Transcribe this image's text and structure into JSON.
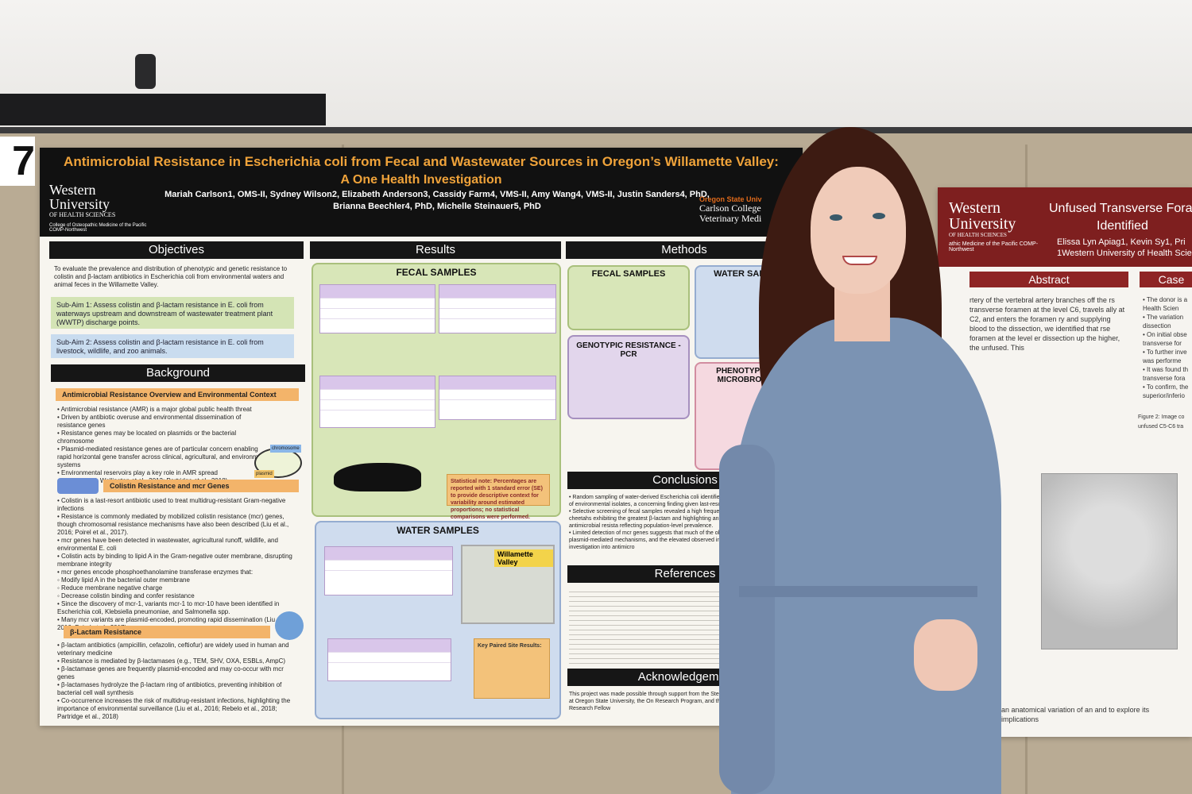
{
  "booth": {
    "number": "7"
  },
  "main_poster": {
    "title": "Antimicrobial Resistance in Escherichia coli from Fecal and Wastewater Sources in Oregon’s Willamette Valley:",
    "subtitle": "A One Health Investigation",
    "authors_line1": "Mariah Carlson1, OMS-II, Sydney Wilson2, Elizabeth Anderson3, Cassidy Farm4, VMS-II, Amy Wang4, VMS-II, Justin Sanders4, PhD,",
    "authors_line2": "Brianna Beechler4, PhD, Michelle Steinauer5, PhD",
    "logo_left_name": "Western",
    "logo_left_name2": "University",
    "logo_left_sub": "OF HEALTH SCIENCES",
    "logo_left_college": "College of Osteopathic Medicine of the Pacific COMP-Northwest",
    "logo_right_osu": "Oregon State Univ",
    "logo_right_college": "Carlson College",
    "logo_right_college2": "Veterinary Medi",
    "sections": {
      "objectives": "Objectives",
      "background": "Background",
      "results": "Results",
      "methods": "Methods",
      "conclusions": "Conclusions",
      "references": "References",
      "acknowledgements": "Acknowledgemen"
    },
    "objectives_text": "To evaluate the prevalence and distribution of phenotypic and genetic resistance to colistin and β-lactam antibiotics in Escherichia coli from environmental waters and animal feces in the Willamette Valley.",
    "sub_aim_1": "Sub-Aim 1: Assess colistin and β-lactam resistance in E. coli from waterways upstream and downstream of wastewater treatment plant (WWTP) discharge points.",
    "sub_aim_2": "Sub-Aim 2: Assess colistin and β-lactam resistance in E. coli from livestock, wildlife, and zoo animals.",
    "bg_heading_1": "Antimicrobial Resistance Overview and Environmental Context",
    "bg_heading_2": "Colistin Resistance and mcr Genes",
    "bg_heading_3": "β-Lactam Resistance",
    "bg_bullets_1": "• Antimicrobial resistance (AMR) is a major global public health threat\n• Driven by antibiotic overuse and environmental dissemination of resistance genes\n• Resistance genes may be located on plasmids or the bacterial chromosome\n• Plasmid-mediated resistance genes are of particular concern enabling rapid horizontal gene transfer across clinical, agricultural, and environmental systems\n• Environmental reservoirs play a key role in AMR spread\n• (WHO, 2017; Wellington et al., 2013; Partridge et al., 2018)",
    "bg_bullets_2": "• Colistin is a last-resort antibiotic used to treat multidrug-resistant Gram-negative infections\n• Resistance is commonly mediated by mobilized colistin resistance (mcr) genes, though chromosomal resistance mechanisms have also been described (Liu et al., 2016; Poirel et al., 2017).\n• mcr genes have been detected in wastewater, agricultural runoff, wildlife, and environmental E. coli\n• Colistin acts by binding to lipid A in the Gram-negative outer membrane, disrupting membrane integrity\n• mcr genes encode phosphoethanolamine transferase enzymes that:\n   ◦ Modify lipid A in the bacterial outer membrane\n   ◦ Reduce membrane negative charge\n   ◦ Decrease colistin binding and confer resistance\n• Since the discovery of mcr-1, variants mcr-1 to mcr-10 have been identified in Escherichia coli, Klebsiella pneumoniae, and Salmonella spp.\n• Many mcr variants are plasmid-encoded, promoting rapid dissemination (Liu et al., 2016; Poirel et al., 2017).",
    "bg_bullets_3": "• β-lactam antibiotics (ampicillin, cefazolin, ceftiofur) are widely used in human and veterinary medicine\n• Resistance is mediated by β-lactamases (e.g., TEM, SHV, OXA, ESBLs, AmpC)\n• β-lactamase genes are frequently plasmid-encoded and may co-occur with mcr genes\n• β-lactamases hydrolyze the β-lactam ring of antibiotics, preventing inhibition of bacterial cell wall synthesis\n• Co-occurrence increases the risk of multidrug-resistant infections, highlighting the importance of environmental surveillance (Liu et al., 2016; Rebelo et al., 2018; Partridge et al., 2018)",
    "label_chromosome": "chromosome",
    "label_plasmid": "plasmid",
    "fecal_samples": "FECAL SAMPLES",
    "water_samples": "WATER SAMPLES",
    "methods_fecal": "FECAL SAMPLES",
    "methods_water": "WATER SAMPLE",
    "methods_genotypic": "GENOTYPIC RESISTANCE - PCR",
    "methods_phenotypic": "PHENOTYPIC RE MICROBROTH D",
    "map_label": "Willamette Valley",
    "statistical_note": "Statistical note: Percentages are reported with 1 standard error (SE) to provide descriptive context for variability around estimated proportions; no statistical comparisons were performed.",
    "key_paired": "Key Paired Site Results:",
    "conclusions_text": "• Random sampling of water-derived Escherichia coli identified EUCAST resistance in ~5% of environmental isolates, a concerning finding given last-resort antibiotic.\n• Selective screening of fecal samples revealed a high frequency of cli in animal hosts, with cheetahs exhibiting the greatest β-lactam and highlighting animals as important reservoirs of antimicrobial resista reflecting population-level prevalence.\n• Limited detection of mcr genes suggests that much of the observed be driven by non-plasmid-mediated mechanisms, and the elevated observed in cheetahs warrants further investigation into antimicro",
    "ack_text": "This project was made possible through support from the Stein University, the Beechler Lab at Oregon State University, the On Research Program, and the Western University Research Fellow"
  },
  "right_poster": {
    "logo_name": "Western",
    "logo_name2": "University",
    "logo_sub": "OF HEALTH SCIENCES",
    "logo_college": "athic Medicine of the Pacific COMP-Northwest",
    "title_1": "Unfused Transverse Fora",
    "title_2": "Identified",
    "authors": "Elissa Lyn Apiag1, Kevin Sy1, Pri",
    "affil": "1Western University of Health Scie",
    "abstract": "Abstract",
    "case": "Case",
    "abstract_text": "rtery of the vertebral artery branches off the rs transverse foramen at the level C6, travels ally at C2, and enters the foramen ry and supplying blood to the dissection, we identified that rse foramen at the level er dissection up the higher, the unfused. This",
    "case_text": "• The donor is a Health Scien\n• The variation dissection\n• On initial obse transverse for\n• To further inve was performe\n• It was found th transverse fora\n• To confirm, the superior/inferio",
    "figure_caption": "Figure 2: Image co unfused C5-C6 tra",
    "footer_text": "an anatomical variation of an and to explore its implications"
  }
}
